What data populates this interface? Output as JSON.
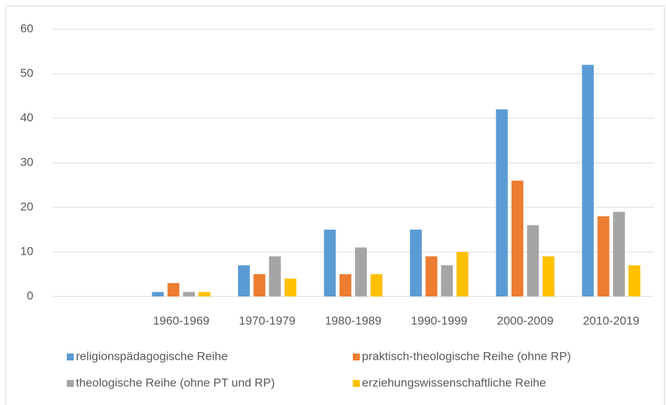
{
  "chart_data": {
    "type": "bar",
    "categories": [
      null,
      "1960-1969",
      "1970-1979",
      "1980-1989",
      "1990-1999",
      "2000-2009",
      "2010-2019"
    ],
    "series": [
      {
        "name": "religionspädagogische Reihe",
        "color": "#5b9bd5",
        "values": [
          null,
          1,
          7,
          15,
          15,
          42,
          52
        ]
      },
      {
        "name": "praktisch-theologische Reihe (ohne RP)",
        "color": "#ed7d31",
        "values": [
          null,
          3,
          5,
          5,
          9,
          26,
          18
        ]
      },
      {
        "name": "theologische Reihe (ohne PT und RP)",
        "color": "#a5a5a5",
        "values": [
          null,
          1,
          9,
          11,
          7,
          16,
          19
        ]
      },
      {
        "name": "erziehungswissenschaftliche Reihe",
        "color": "#ffc000",
        "values": [
          null,
          1,
          4,
          5,
          10,
          9,
          7
        ]
      }
    ],
    "ylim": [
      0,
      60
    ],
    "yticks": [
      0,
      10,
      20,
      30,
      40,
      50,
      60
    ],
    "grid": true,
    "legend": "bottom"
  }
}
